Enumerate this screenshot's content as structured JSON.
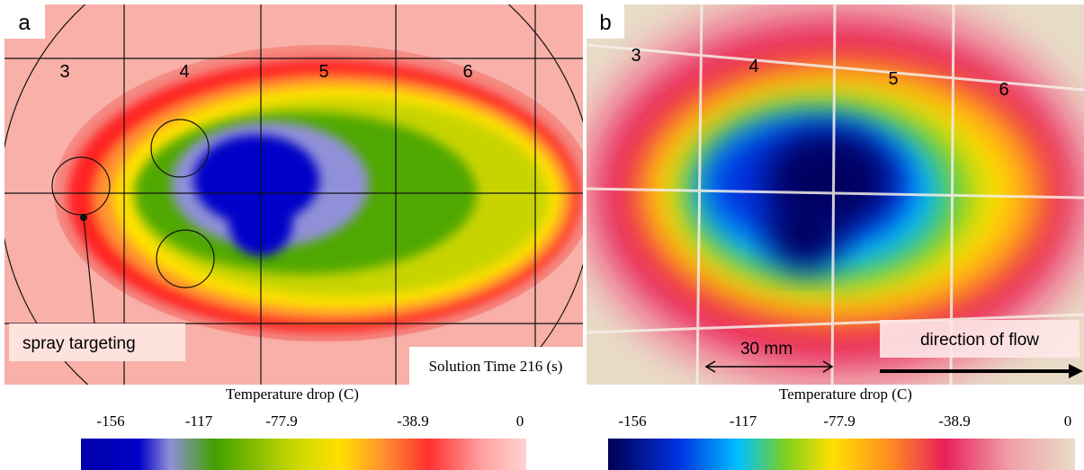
{
  "panels": [
    {
      "label": "a",
      "grid_labels": [
        "3",
        "4",
        "5",
        "6"
      ],
      "annotations": [
        "spray targeting",
        "Solution Time 216 (s)"
      ],
      "colorbar": {
        "title": "Temperature drop (C)",
        "ticks": [
          "-156",
          "-117",
          "-77.9",
          "-38.9",
          "0"
        ]
      }
    },
    {
      "label": "b",
      "grid_labels": [
        "3",
        "4",
        "5",
        "6"
      ],
      "annotations": [
        "30 mm",
        "direction of flow"
      ],
      "colorbar": {
        "title": "Temperature drop (C)",
        "ticks": [
          "-156",
          "-117",
          "-77.9",
          "-38.9",
          "0"
        ]
      }
    }
  ]
}
